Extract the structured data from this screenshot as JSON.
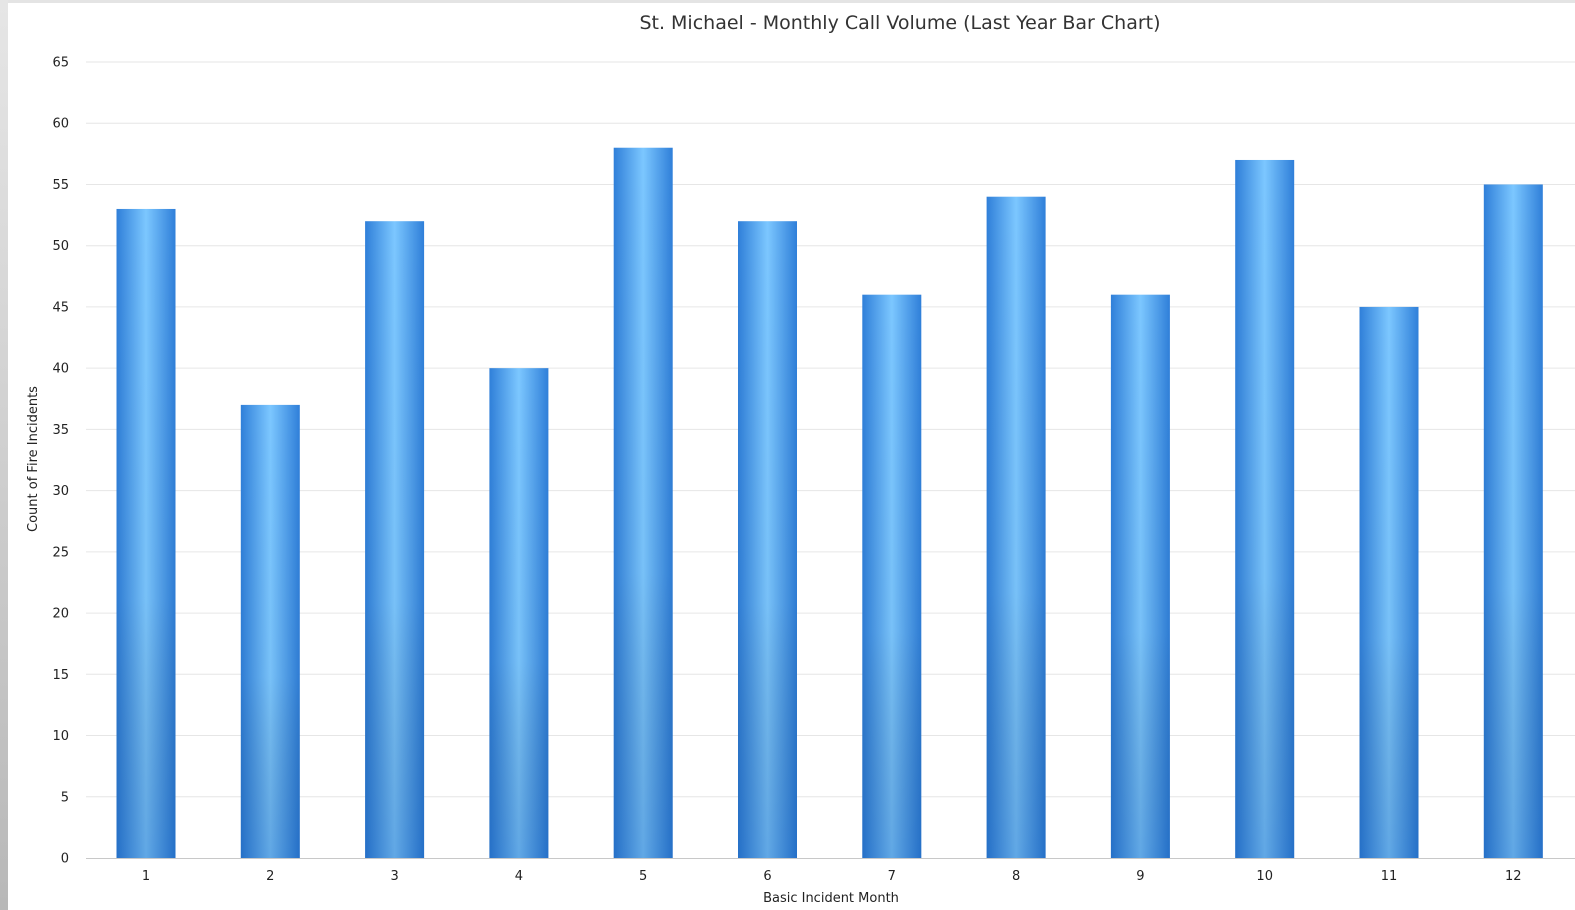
{
  "chart_data": {
    "type": "bar",
    "title": "St. Michael - Monthly Call Volume (Last Year Bar Chart)",
    "xlabel": "Basic Incident Month",
    "ylabel": "Count of Fire Incidents",
    "categories": [
      "1",
      "2",
      "3",
      "4",
      "5",
      "6",
      "7",
      "8",
      "9",
      "10",
      "11",
      "12"
    ],
    "values": [
      53,
      37,
      52,
      40,
      58,
      52,
      46,
      54,
      46,
      57,
      45,
      55
    ],
    "ylim": [
      0,
      65
    ],
    "yticks": [
      0,
      5,
      10,
      15,
      20,
      25,
      30,
      35,
      40,
      45,
      50,
      55,
      60,
      65
    ],
    "grid": true,
    "legend": "none",
    "bar_color_light": "#7cc7ff",
    "bar_color_dark": "#2f7fd9"
  }
}
